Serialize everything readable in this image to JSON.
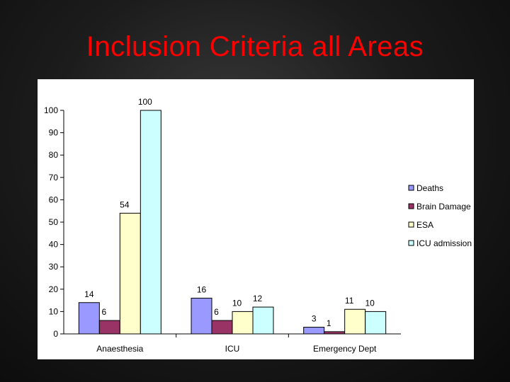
{
  "slide": {
    "title": "Inclusion Criteria all Areas"
  },
  "chart_data": {
    "type": "bar",
    "categories": [
      "Anaesthesia",
      "ICU",
      "Emergency Dept"
    ],
    "series": [
      {
        "name": "Deaths",
        "values": [
          14,
          16,
          3
        ],
        "color": "#9999ff"
      },
      {
        "name": "Brain Damage",
        "values": [
          6,
          6,
          1
        ],
        "color": "#993366"
      },
      {
        "name": "ESA",
        "values": [
          54,
          10,
          11
        ],
        "color": "#ffffcc"
      },
      {
        "name": "ICU admission",
        "values": [
          100,
          12,
          10
        ],
        "color": "#ccffff"
      }
    ],
    "ylim": [
      0,
      100
    ],
    "yticks": [
      0,
      10,
      20,
      30,
      40,
      50,
      60,
      70,
      80,
      90,
      100
    ],
    "grid": false,
    "legend": "right",
    "data_labels": true
  }
}
